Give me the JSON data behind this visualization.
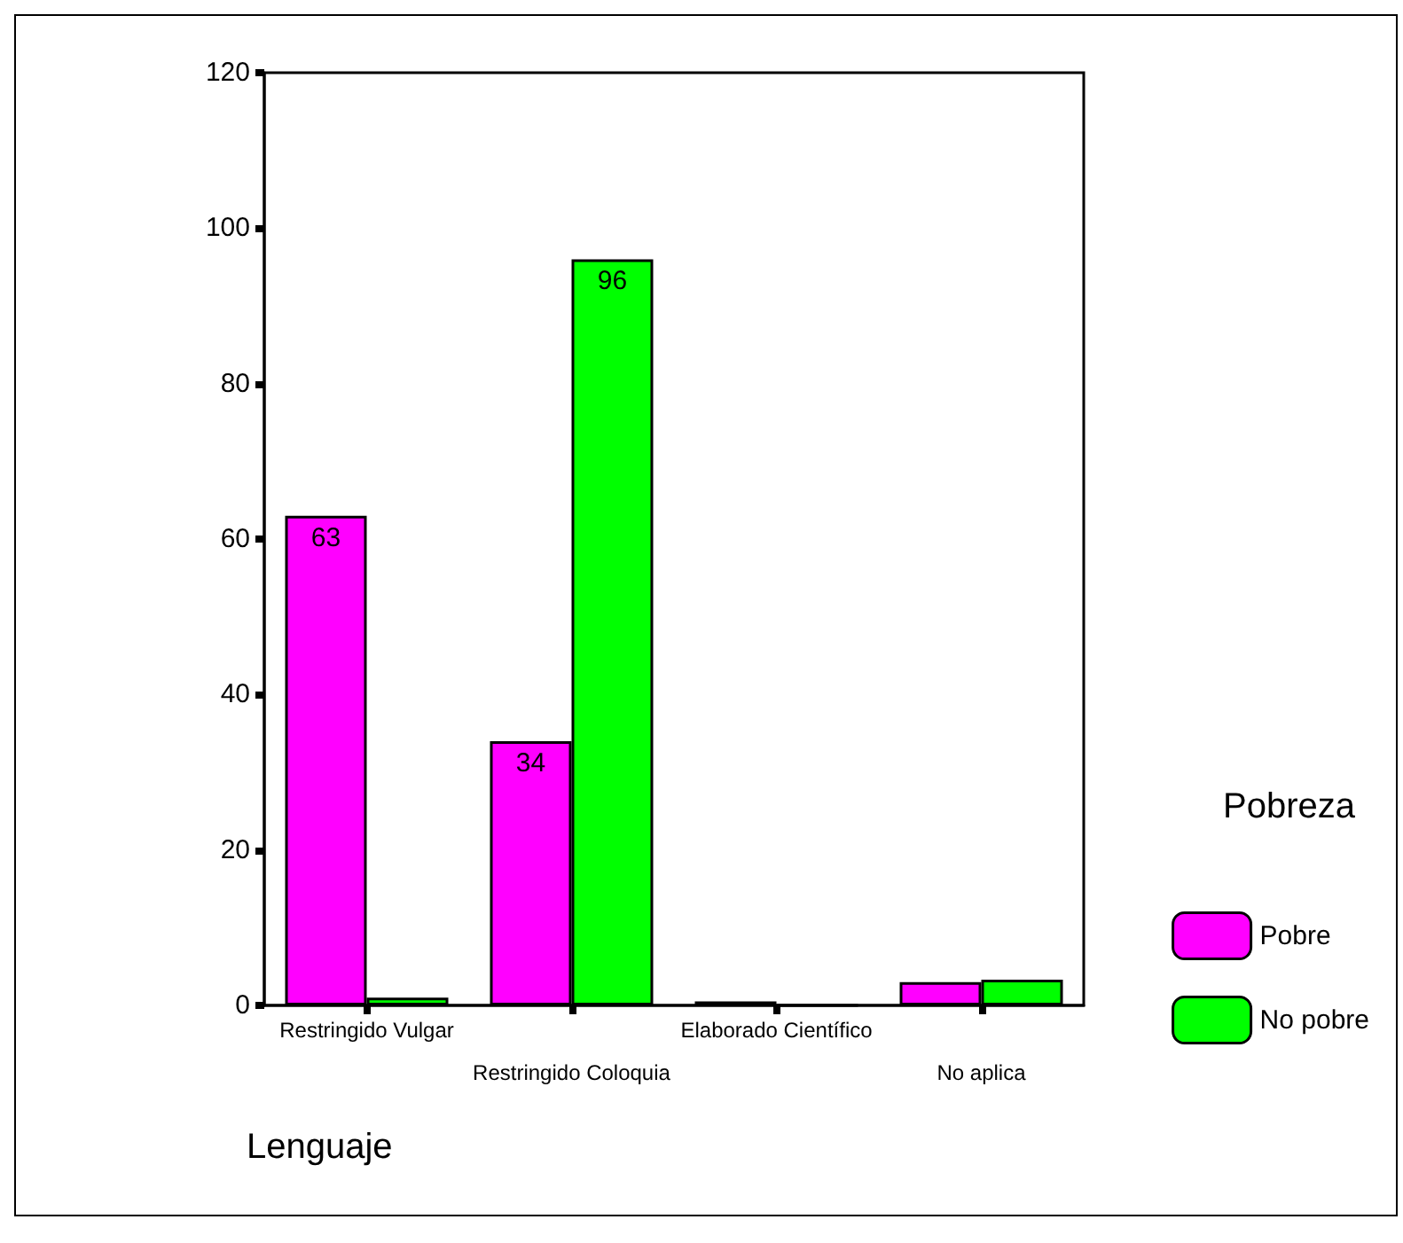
{
  "chart_data": {
    "type": "bar",
    "xlabel": "Lenguaje",
    "legend_title": "Pobreza",
    "categories": [
      "Restringido Vulgar",
      "Restringido Coloquia",
      "Elaborado Científico",
      "No aplica"
    ],
    "series": [
      {
        "name": "Pobre",
        "color": "#ff00ff",
        "values": [
          63,
          34,
          0.5,
          3
        ],
        "value_labels": [
          "63",
          "34",
          null,
          null
        ]
      },
      {
        "name": "No pobre",
        "color": "#00ff00",
        "values": [
          1,
          96,
          0,
          3.3
        ],
        "value_labels": [
          null,
          "96",
          null,
          null
        ]
      }
    ],
    "ylim": [
      0,
      120
    ],
    "yticks": [
      0,
      20,
      40,
      60,
      80,
      100,
      120
    ],
    "grid": false,
    "legend": "right"
  }
}
